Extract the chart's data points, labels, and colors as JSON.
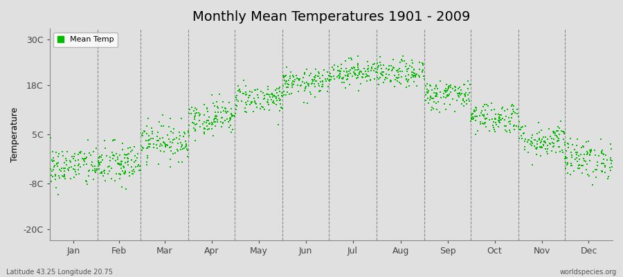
{
  "title": "Monthly Mean Temperatures 1901 - 2009",
  "ylabel": "Temperature",
  "yticks": [
    -20,
    -8,
    5,
    18,
    30
  ],
  "ytick_labels": [
    "-20C",
    "-8C",
    "5C",
    "18C",
    "30C"
  ],
  "ylim": [
    -23,
    33
  ],
  "months": [
    "Jan",
    "Feb",
    "Mar",
    "Apr",
    "May",
    "Jun",
    "Jul",
    "Aug",
    "Sep",
    "Oct",
    "Nov",
    "Dec"
  ],
  "month_days": [
    31,
    28,
    31,
    30,
    31,
    30,
    31,
    31,
    30,
    31,
    30,
    31
  ],
  "dot_color": "#00bb00",
  "background_color": "#e0e0e0",
  "plot_bg_color": "#e0e0e0",
  "legend_label": "Mean Temp",
  "bottom_left": "Latitude 43.25 Longitude 20.75",
  "bottom_right": "worldspecies.org",
  "title_fontsize": 14,
  "axis_fontsize": 9,
  "tick_fontsize": 9,
  "monthly_means": [
    -3.5,
    -3.0,
    3.2,
    9.5,
    14.5,
    18.5,
    21.5,
    21.0,
    15.5,
    9.5,
    3.5,
    -1.5
  ],
  "monthly_stds": [
    2.8,
    3.0,
    2.5,
    2.3,
    2.0,
    1.8,
    1.7,
    1.8,
    2.0,
    2.1,
    2.3,
    2.6
  ],
  "n_years": 109,
  "seed": 42
}
